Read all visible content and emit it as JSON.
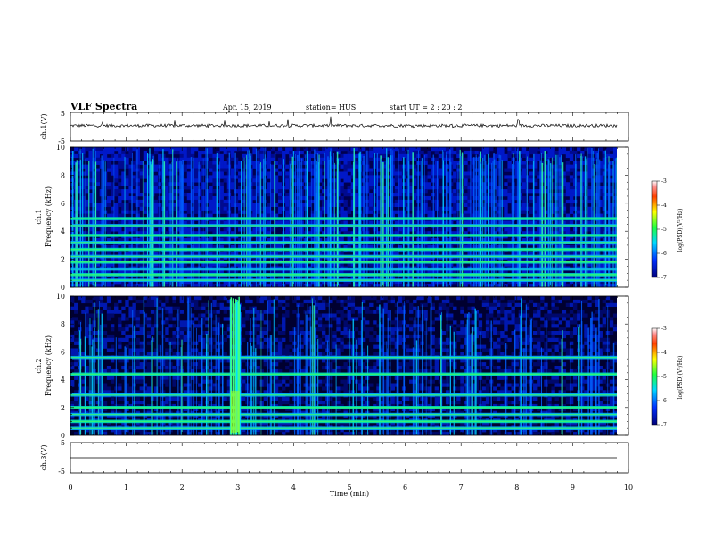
{
  "header": {
    "title": "VLF Spectra",
    "date": "Apr. 15, 2019",
    "station": "station= HUS",
    "start": "start  UT =   2 : 20 : 2"
  },
  "chart_data": [
    {
      "type": "line",
      "name": "ch1-waveform",
      "ylabel": "ch.1(V)",
      "ylim": [
        -5,
        5
      ],
      "y_ticks": [
        "5",
        "-5"
      ],
      "xlim": [
        0,
        10
      ]
    },
    {
      "type": "heatmap",
      "name": "ch1-spectrogram",
      "ylabel_line1": "ch.1",
      "ylabel_line2": "Frequency  (kHz)",
      "ylim": [
        0,
        10
      ],
      "y_ticks": [
        "0",
        "2",
        "4",
        "6",
        "8",
        "10"
      ],
      "xlim": [
        0,
        10
      ],
      "bands_khz": [
        0.5,
        0.9,
        1.3,
        1.8,
        2.2,
        2.7,
        3.2,
        3.7,
        4.4,
        4.9
      ],
      "colorbar": {
        "label": "log(PSD)(V²/Hz)",
        "ticks": [
          "-3",
          "-4",
          "-5",
          "-6",
          "-7"
        ],
        "range": [
          -7,
          -3
        ]
      }
    },
    {
      "type": "heatmap",
      "name": "ch2-spectrogram",
      "ylabel_line1": "ch.2",
      "ylabel_line2": "Frequency  (kHz)",
      "ylim": [
        0,
        10
      ],
      "y_ticks": [
        "0",
        "2",
        "4",
        "6",
        "8",
        "10"
      ],
      "xlim": [
        0,
        10
      ],
      "bands_khz": [
        0.5,
        1.0,
        1.5,
        2.0,
        2.9,
        4.4,
        5.6
      ],
      "burst_min": 2.95,
      "colorbar": {
        "label": "log(PSD)(V²/Hz)",
        "ticks": [
          "-3",
          "-4",
          "-5",
          "-6",
          "-7"
        ],
        "range": [
          -7,
          -3
        ]
      }
    },
    {
      "type": "line",
      "name": "ch3-waveform",
      "ylabel": "ch.3(V)",
      "ylim": [
        -5,
        5
      ],
      "y_ticks": [
        "5",
        "-5"
      ],
      "xlim": [
        0,
        10
      ],
      "xlabel": "Time  (min)",
      "x_ticks": [
        "0",
        "1",
        "2",
        "3",
        "4",
        "5",
        "6",
        "7",
        "8",
        "9",
        "10"
      ]
    }
  ]
}
